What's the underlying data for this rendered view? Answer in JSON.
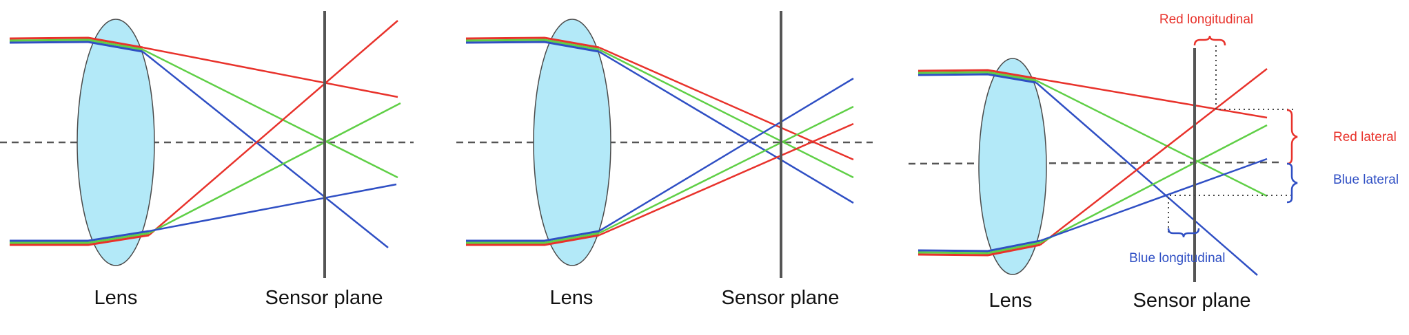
{
  "diagrams": [
    {
      "lens_label": "Lens",
      "sensor_label": "Sensor plane"
    },
    {
      "lens_label": "Lens",
      "sensor_label": "Sensor plane"
    },
    {
      "lens_label": "Lens",
      "sensor_label": "Sensor plane",
      "annotations": {
        "red_longitudinal": "Red longitudinal",
        "red_lateral": "Red lateral",
        "blue_lateral": "Blue lateral",
        "blue_longitudinal": "Blue longitudinal"
      }
    }
  ],
  "colors": {
    "red": "#e8322b",
    "green": "#5fcf46",
    "blue": "#2f4fc4",
    "lens_fill": "#b3e9f8",
    "lens_stroke": "#4a4a4a",
    "sensor": "#555555",
    "axis": "#555555",
    "anno_red": "#e8322b",
    "anno_blue": "#2f4fc4"
  }
}
